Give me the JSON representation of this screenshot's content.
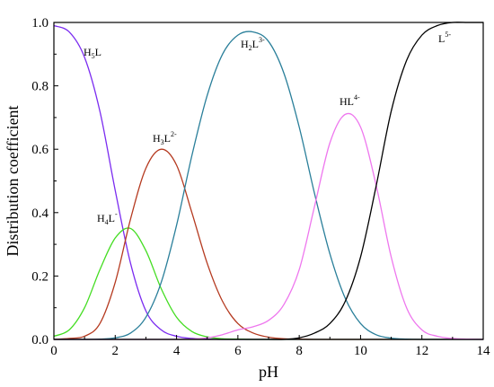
{
  "chart_data": {
    "type": "line",
    "xlabel": "pH",
    "ylabel": "Distribution coefficient",
    "xlim": [
      0,
      14
    ],
    "ylim": [
      0,
      1.0
    ],
    "xticks": [
      "0",
      "2",
      "4",
      "6",
      "8",
      "10",
      "12",
      "14"
    ],
    "yticks": [
      "0.0",
      "0.2",
      "0.4",
      "0.6",
      "0.8",
      "1.0"
    ],
    "grid": false,
    "x": [
      0,
      0.5,
      1,
      1.5,
      2,
      2.5,
      3,
      3.5,
      4,
      4.5,
      5,
      5.5,
      6,
      6.5,
      7,
      7.5,
      8,
      8.5,
      9,
      9.5,
      10,
      10.5,
      11,
      11.5,
      12,
      12.5,
      13,
      13.5,
      14
    ],
    "series": [
      {
        "name": "H5L",
        "label_main": "H",
        "label_sub1": "5",
        "label_tail": "L",
        "label_sup": "",
        "color": "#7b2cf0",
        "values": [
          0.99,
          0.97,
          0.89,
          0.72,
          0.47,
          0.24,
          0.09,
          0.03,
          0.01,
          0.003,
          0.001,
          0,
          0,
          0,
          0,
          0,
          0,
          0,
          0,
          0,
          0,
          0,
          0,
          0,
          0,
          0,
          0,
          0,
          0
        ]
      },
      {
        "name": "H4L-",
        "label_main": "H",
        "label_sub1": "4",
        "label_tail": "L",
        "label_sup": "-",
        "color": "#44dd22",
        "values": [
          0.01,
          0.03,
          0.1,
          0.22,
          0.32,
          0.35,
          0.28,
          0.16,
          0.07,
          0.025,
          0.008,
          0.002,
          0.001,
          0,
          0,
          0,
          0,
          0,
          0,
          0,
          0,
          0,
          0,
          0,
          0,
          0,
          0,
          0,
          0
        ]
      },
      {
        "name": "H3L2-",
        "label_main": "H",
        "label_sub1": "3",
        "label_tail": "L",
        "label_sup": "2-",
        "color": "#b53a20",
        "values": [
          0,
          0.003,
          0.01,
          0.05,
          0.18,
          0.38,
          0.54,
          0.6,
          0.55,
          0.4,
          0.24,
          0.12,
          0.05,
          0.02,
          0.007,
          0.002,
          0.001,
          0,
          0,
          0,
          0,
          0,
          0,
          0,
          0,
          0,
          0,
          0,
          0
        ]
      },
      {
        "name": "H2L3-",
        "label_main": "H",
        "label_sub1": "2",
        "label_tail": "L",
        "label_sup": "3-",
        "color": "#2a7f9a",
        "values": [
          0,
          0,
          0,
          0.001,
          0.005,
          0.02,
          0.07,
          0.18,
          0.36,
          0.58,
          0.77,
          0.9,
          0.96,
          0.97,
          0.94,
          0.84,
          0.67,
          0.46,
          0.27,
          0.13,
          0.05,
          0.015,
          0.004,
          0.001,
          0,
          0,
          0,
          0,
          0
        ]
      },
      {
        "name": "HL4-",
        "label_main": "HL",
        "label_sub1": "",
        "label_tail": "",
        "label_sup": "4-",
        "color": "#ee77ee",
        "values": [
          0,
          0,
          0,
          0,
          0,
          0,
          0,
          0,
          0,
          0.001,
          0.005,
          0.015,
          0.03,
          0.04,
          0.06,
          0.11,
          0.22,
          0.42,
          0.62,
          0.71,
          0.67,
          0.49,
          0.26,
          0.1,
          0.03,
          0.01,
          0.003,
          0.001,
          0
        ]
      },
      {
        "name": "L5-",
        "label_main": "L",
        "label_sub1": "",
        "label_tail": "",
        "label_sup": "5-",
        "color": "#000000",
        "values": [
          0,
          0,
          0,
          0,
          0,
          0,
          0,
          0,
          0,
          0,
          0,
          0,
          0,
          0,
          0,
          0,
          0.005,
          0.02,
          0.05,
          0.12,
          0.26,
          0.48,
          0.72,
          0.88,
          0.96,
          0.99,
          1.0,
          1.0,
          1.0
        ]
      }
    ]
  }
}
